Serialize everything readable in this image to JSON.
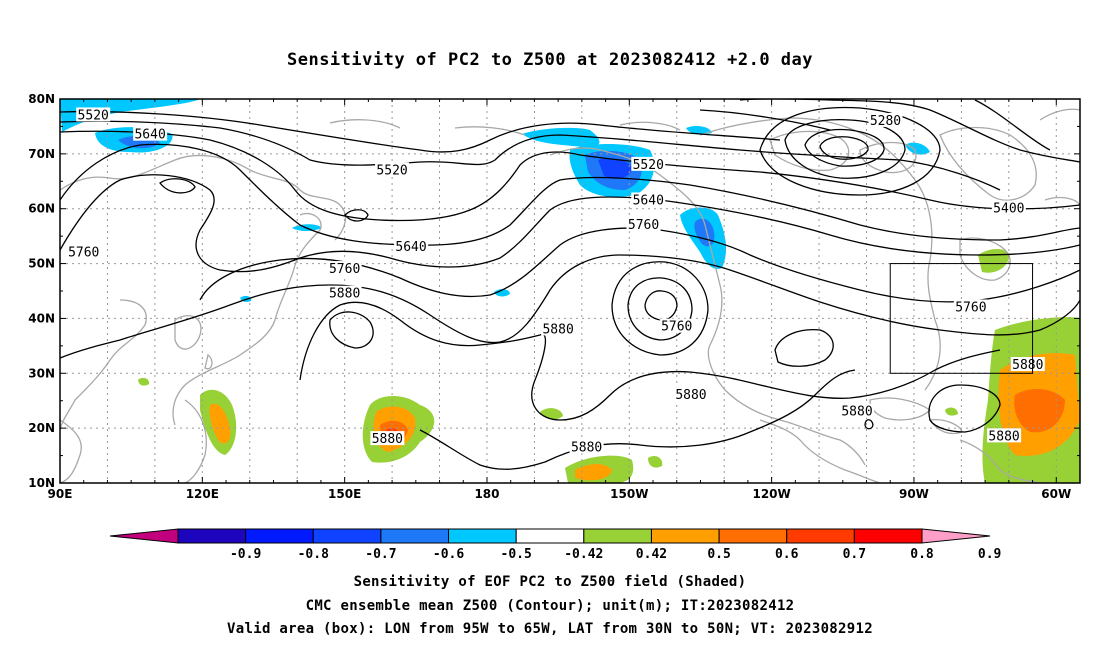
{
  "title": "Sensitivity of PC2 to Z500 at 2023082412 +2.0 day",
  "map": {
    "lon_min": 90,
    "lon_max": 305,
    "lat_min": 10,
    "lat_max": 80,
    "lat_ticks": [
      {
        "value": 80,
        "label": "80N"
      },
      {
        "value": 70,
        "label": "70N"
      },
      {
        "value": 60,
        "label": "60N"
      },
      {
        "value": 50,
        "label": "50N"
      },
      {
        "value": 40,
        "label": "40N"
      },
      {
        "value": 30,
        "label": "30N"
      },
      {
        "value": 20,
        "label": "20N"
      },
      {
        "value": 10,
        "label": "10N"
      }
    ],
    "lon_ticks": [
      {
        "value": 90,
        "label": "90E"
      },
      {
        "value": 120,
        "label": "120E"
      },
      {
        "value": 150,
        "label": "150E"
      },
      {
        "value": 180,
        "label": "180"
      },
      {
        "value": 210,
        "label": "150W"
      },
      {
        "value": 240,
        "label": "120W"
      },
      {
        "value": 270,
        "label": "90W"
      },
      {
        "value": 300,
        "label": "60W"
      }
    ],
    "valid_box": {
      "lon_min": 265,
      "lon_max": 295,
      "lat_min": 30,
      "lat_max": 50
    },
    "contour_labels": [
      {
        "text": "5520",
        "lon": 97,
        "lat": 77
      },
      {
        "text": "5640",
        "lon": 109,
        "lat": 73.5
      },
      {
        "text": "5520",
        "lon": 160,
        "lat": 67
      },
      {
        "text": "5520",
        "lon": 214,
        "lat": 68
      },
      {
        "text": "5640",
        "lon": 214,
        "lat": 61.5
      },
      {
        "text": "5760",
        "lon": 213,
        "lat": 57
      },
      {
        "text": "5280",
        "lon": 264,
        "lat": 76
      },
      {
        "text": "5400",
        "lon": 290,
        "lat": 60
      },
      {
        "text": "5760",
        "lon": 95,
        "lat": 52
      },
      {
        "text": "5640",
        "lon": 164,
        "lat": 53
      },
      {
        "text": "5760",
        "lon": 150,
        "lat": 49
      },
      {
        "text": "5880",
        "lon": 150,
        "lat": 44.5
      },
      {
        "text": "5760",
        "lon": 220,
        "lat": 38.5
      },
      {
        "text": "5880",
        "lon": 195,
        "lat": 38
      },
      {
        "text": "5760",
        "lon": 282,
        "lat": 42
      },
      {
        "text": "5880",
        "lon": 294,
        "lat": 31.5
      },
      {
        "text": "5880",
        "lon": 223,
        "lat": 26
      },
      {
        "text": "5880",
        "lon": 258,
        "lat": 23
      },
      {
        "text": "5880",
        "lon": 159,
        "lat": 18
      },
      {
        "text": "5880",
        "lon": 201,
        "lat": 16.5
      },
      {
        "text": "5880",
        "lon": 289,
        "lat": 18.5
      }
    ]
  },
  "colorbar": {
    "labels": [
      "-0.9",
      "-0.8",
      "-0.7",
      "-0.6",
      "-0.5",
      "-0.42",
      "0.42",
      "0.5",
      "0.6",
      "0.7",
      "0.8",
      "0.9"
    ],
    "colors": [
      "#c2007e",
      "#1d05bd",
      "#0019ff",
      "#0f43ff",
      "#1e78f7",
      "#00c8ff",
      "#ffffff",
      "#97d135",
      "#ffa000",
      "#ff6e00",
      "#ff3b00",
      "#ff0000",
      "#ff9fc9"
    ]
  },
  "footer": {
    "line1": "Sensitivity of EOF PC2 to Z500 field (Shaded)",
    "line2": "CMC ensemble mean Z500 (Contour); unit(m); IT:2023082412",
    "line3": "Valid area (box): LON from 95W to 65W, LAT from 30N to 50N; VT: 2023082912"
  }
}
